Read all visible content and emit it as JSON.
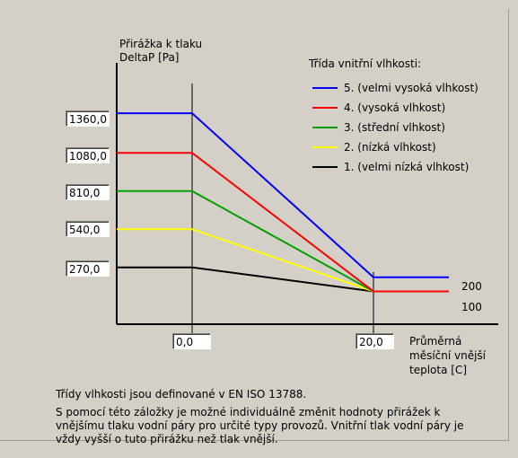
{
  "chart_data": {
    "type": "line",
    "ylabel": "Přirážka k tlaku DeltaP [Pa]",
    "ylabel_lines": [
      "Přirážka k tlaku",
      "DeltaP [Pa]"
    ],
    "xlabel": "Průměrná měsíční vnější teplota [C]",
    "xlabel_lines": [
      "Průměrná",
      "měsíční vnější",
      "teplota [C]"
    ],
    "legend_title": "Třída vnitřní vlhkosti:",
    "x_breakpoints": [
      "0,0",
      "20,0"
    ],
    "series": [
      {
        "name": "5. (velmi vysoká vlhkost)",
        "color": "#0000ff",
        "left_value": "1360,0",
        "right_value": "200",
        "y_left": 1360,
        "y_right": 200
      },
      {
        "name": "4. (vysoká vlhkost)",
        "color": "#ff0000",
        "left_value": "1080,0",
        "right_value": "100",
        "y_left": 1080,
        "y_right": 100
      },
      {
        "name": "3. (střední vlhkost)",
        "color": "#00a000",
        "left_value": "810,0",
        "y_left": 810,
        "y_right": 100
      },
      {
        "name": "2. (nízká vlhkost)",
        "color": "#ffff00",
        "left_value": "540,0",
        "y_left": 540,
        "y_right": 100
      },
      {
        "name": "1. (velmi nízká vlhkost)",
        "color": "#000000",
        "left_value": "270,0",
        "y_left": 270,
        "y_right": 100
      }
    ]
  },
  "footer": {
    "line1": "Třídy vlhkosti jsou definované v EN ISO 13788.",
    "line2": "S pomocí této záložky je možné individuálně změnit hodnoty přirážek k",
    "line3": "vnějšímu tlaku vodní páry pro určité typy provozů. Vnitřní tlak vodní páry je",
    "line4": "vždy vyšší o tuto přirážku než tlak vnější."
  }
}
